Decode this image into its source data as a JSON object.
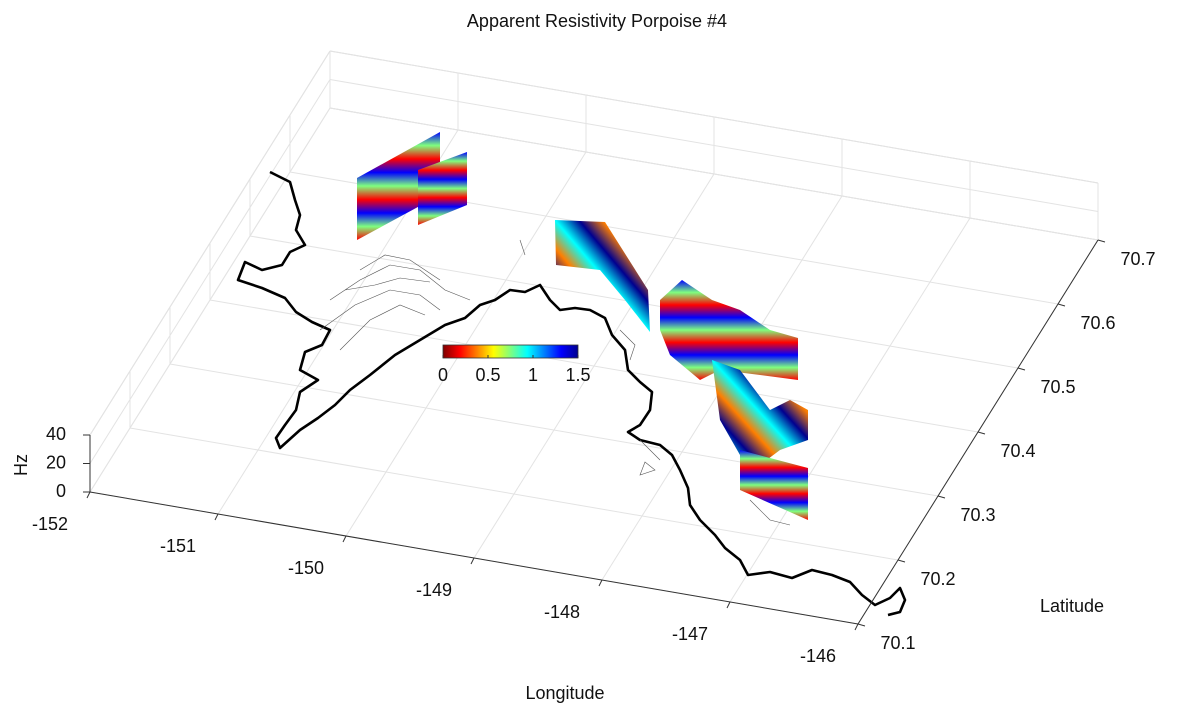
{
  "chart_data": {
    "type": "surface3d",
    "title": "Apparent Resistivity Porpoise #4",
    "xlabel": "Longitude",
    "ylabel": "Latitude",
    "zlabel": "Hz",
    "xlim": [
      -152,
      -146
    ],
    "ylim": [
      70.1,
      70.7
    ],
    "zlim": [
      0,
      40
    ],
    "xticks": [
      -152,
      -151,
      -150,
      -149,
      -148,
      -147,
      -146
    ],
    "yticks": [
      70.1,
      70.2,
      70.3,
      70.4,
      70.5,
      70.6,
      70.7
    ],
    "zticks": [
      0,
      20,
      40
    ],
    "grid": true,
    "colormap": "jet",
    "colorbar": {
      "clim": [
        0,
        1.5
      ],
      "ticks": [
        0,
        0.5,
        1,
        1.5
      ]
    }
  }
}
